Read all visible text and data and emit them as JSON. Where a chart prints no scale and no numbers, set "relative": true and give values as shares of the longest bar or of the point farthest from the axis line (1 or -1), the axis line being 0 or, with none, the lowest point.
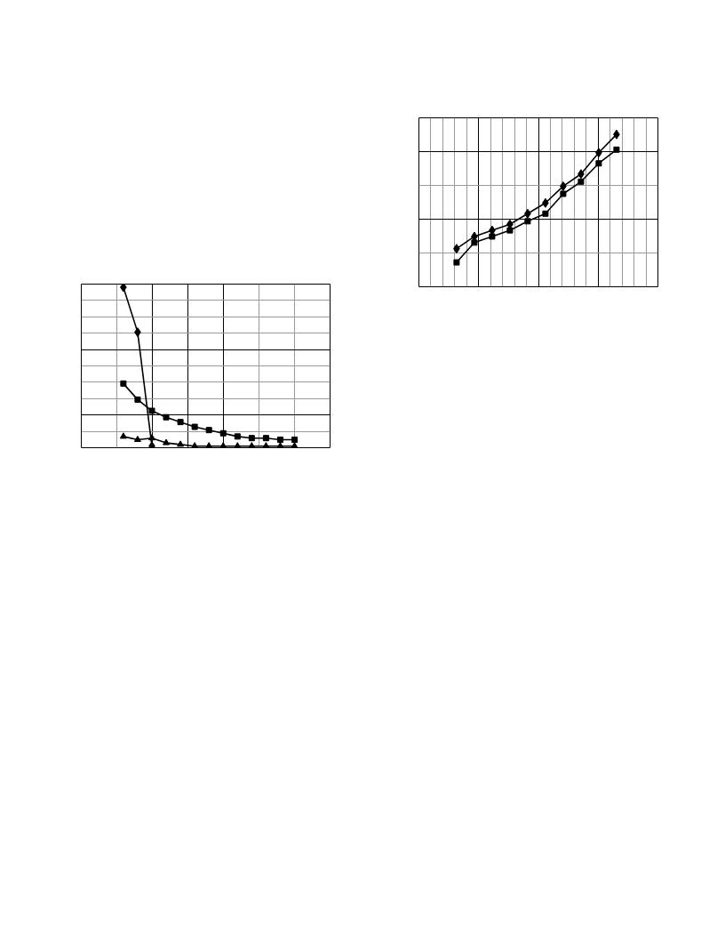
{
  "chart_data": [
    {
      "type": "line",
      "categories": [
        null,
        null,
        null,
        null,
        null,
        null,
        null,
        null,
        null,
        null,
        null,
        null,
        null
      ],
      "relative": true,
      "grid": true,
      "series": [
        {
          "color": "#000000",
          "marker": "diamond",
          "values": [
            1.0,
            0.72,
            0.01,
            null,
            null,
            null,
            null,
            null,
            null,
            null,
            null,
            null,
            null
          ]
        },
        {
          "color": "#000000",
          "marker": "square",
          "values": [
            0.4,
            0.3,
            0.23,
            0.19,
            0.16,
            0.13,
            0.11,
            0.09,
            0.07,
            0.06,
            0.06,
            0.05,
            0.05
          ]
        },
        {
          "color": "#000000",
          "marker": "triangle",
          "values": [
            0.07,
            0.05,
            0.06,
            0.03,
            0.02,
            0.01,
            0.01,
            0.01,
            0.01,
            0.01,
            0.01,
            0.01,
            0.01
          ]
        }
      ]
    },
    {
      "type": "line",
      "categories": [
        null,
        null,
        null,
        null,
        null,
        null,
        null,
        null,
        null,
        null
      ],
      "relative": true,
      "grid": true,
      "series": [
        {
          "color": "#000000",
          "marker": "diamond",
          "values": [
            0.25,
            0.33,
            0.37,
            0.41,
            0.48,
            0.55,
            0.66,
            0.74,
            0.88,
            1.0
          ]
        },
        {
          "color": "#000000",
          "marker": "square",
          "values": [
            0.16,
            0.29,
            0.33,
            0.37,
            0.43,
            0.48,
            0.61,
            0.69,
            0.81,
            0.9
          ]
        }
      ]
    }
  ]
}
